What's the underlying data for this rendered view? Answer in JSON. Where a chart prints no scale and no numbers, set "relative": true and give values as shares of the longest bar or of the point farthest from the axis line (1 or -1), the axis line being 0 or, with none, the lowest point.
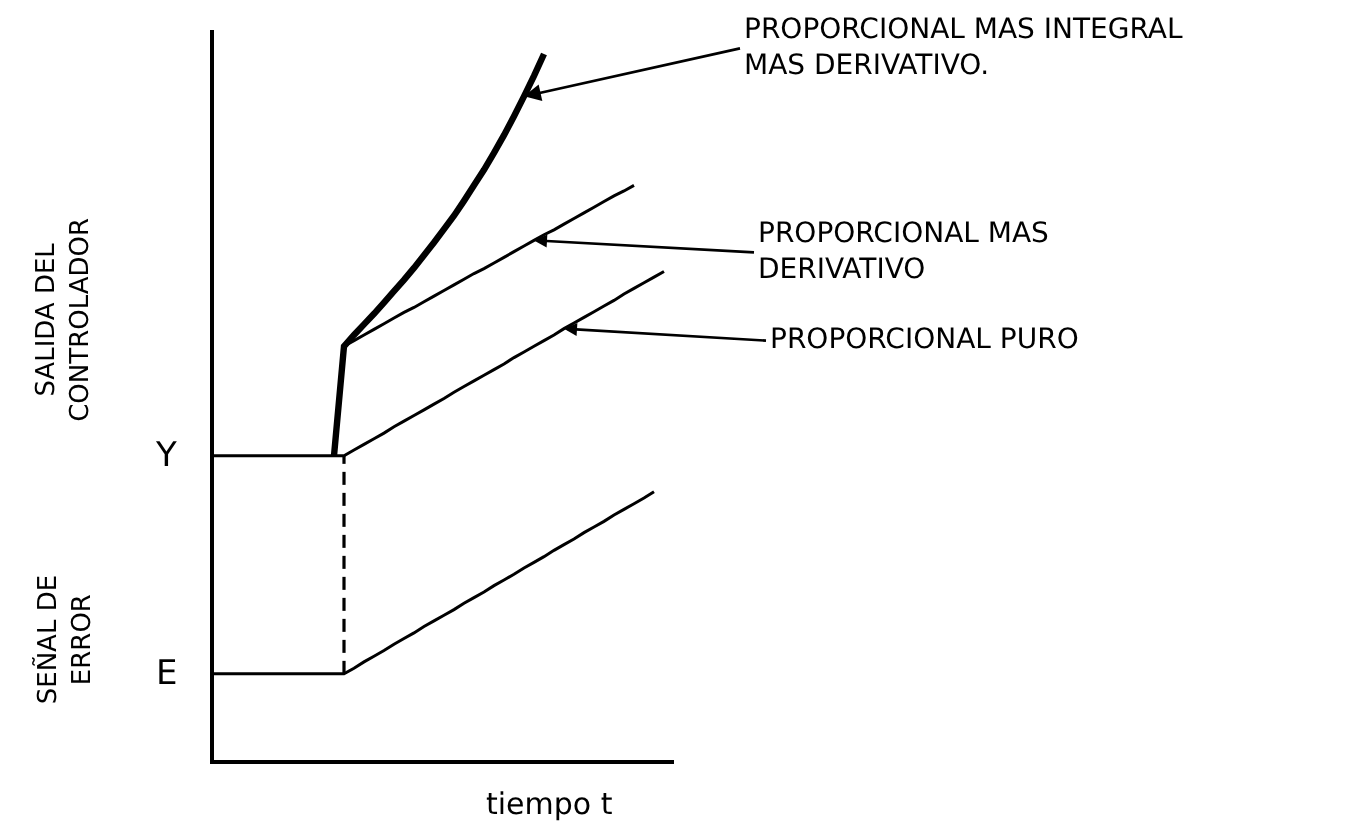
{
  "chart_data": {
    "type": "line",
    "relative": true,
    "xlabel": "tiempo t",
    "ylabel": "SALIDA DEL CONTROLADOR",
    "annotations": [
      "SEÑAL DE ERROR",
      "Y",
      "E"
    ],
    "categories": [
      null,
      null,
      null,
      null,
      null,
      null,
      null,
      null,
      null,
      null,
      null,
      null,
      null,
      null,
      null,
      null,
      null,
      null,
      null,
      null,
      null,
      null,
      null,
      null,
      null,
      null,
      null,
      null,
      null,
      null,
      null,
      null,
      null,
      null,
      null,
      null,
      null,
      null,
      null,
      null,
      null,
      null,
      null,
      null,
      null,
      null,
      null
    ],
    "series": [
      {
        "name": "PROPORCIONAL MAS INTEGRAL MAS DERIVATIVO.",
        "color": "#000000",
        "values": [
          null,
          null,
          null,
          null,
          null,
          null,
          null,
          null,
          null,
          null,
          null,
          null,
          0.431,
          0.586,
          0.602,
          0.617,
          0.632,
          0.648,
          0.664,
          0.68,
          0.697,
          0.715,
          0.733,
          0.752,
          0.771,
          0.792,
          0.814,
          0.836,
          0.86,
          0.885,
          0.912,
          0.94,
          0.969,
          1,
          null,
          null,
          null,
          null,
          null,
          null,
          null,
          null,
          null,
          null,
          null,
          null,
          null
        ]
      },
      {
        "name": "PROPORCIONAL MAS DERIVATIVO",
        "color": "#000000",
        "values": [
          null,
          null,
          null,
          null,
          null,
          null,
          null,
          null,
          null,
          null,
          null,
          null,
          null,
          0.586,
          0.594,
          0.602,
          0.61,
          0.618,
          0.626,
          0.634,
          0.641,
          0.649,
          0.657,
          0.665,
          0.673,
          0.681,
          0.689,
          0.696,
          0.704,
          0.712,
          0.72,
          0.728,
          0.736,
          0.744,
          0.751,
          0.759,
          0.767,
          0.775,
          0.783,
          0.791,
          0.799,
          0.806,
          0.814,
          null,
          null,
          null,
          null
        ]
      },
      {
        "name": "PROPORCIONAL PURO",
        "color": "#000000",
        "values": [
          0.431,
          0.431,
          0.431,
          0.431,
          0.431,
          0.431,
          0.431,
          0.431,
          0.431,
          0.431,
          0.431,
          0.431,
          0.431,
          0.431,
          0.439,
          0.447,
          0.455,
          0.463,
          0.472,
          0.48,
          0.488,
          0.496,
          0.504,
          0.512,
          0.521,
          0.529,
          0.537,
          0.545,
          0.553,
          0.561,
          0.57,
          0.578,
          0.586,
          0.594,
          0.602,
          0.611,
          0.619,
          0.627,
          0.635,
          0.643,
          0.651,
          0.66,
          0.668,
          0.676,
          0.684,
          0.692,
          null
        ]
      },
      {
        "color": "#000000",
        "values": [
          0.122,
          0.122,
          0.122,
          0.122,
          0.122,
          0.122,
          0.122,
          0.122,
          0.122,
          0.122,
          0.122,
          0.122,
          0.122,
          0.122,
          0.13,
          0.139,
          0.147,
          0.155,
          0.164,
          0.172,
          0.18,
          0.189,
          0.197,
          0.205,
          0.213,
          0.222,
          0.23,
          0.238,
          0.247,
          0.255,
          0.263,
          0.272,
          0.28,
          0.288,
          0.297,
          0.305,
          0.313,
          0.322,
          0.33,
          0.338,
          0.347,
          0.355,
          0.363,
          0.371,
          0.38,
          null,
          null
        ]
      }
    ]
  }
}
